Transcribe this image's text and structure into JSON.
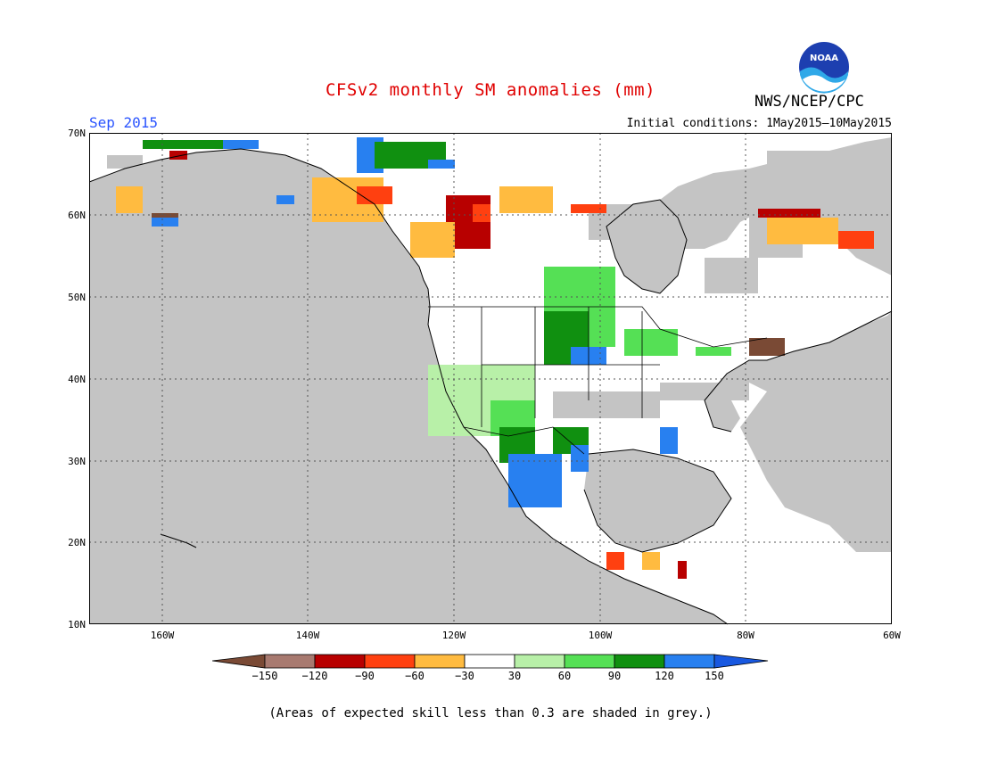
{
  "header": {
    "title": "CFSv2 monthly SM anomalies (mm)",
    "agency": "NWS/NCEP/CPC",
    "period": "Sep 2015",
    "initial_conditions": "Initial conditions: 1May2015–10May2015",
    "logo_text": "NOAA"
  },
  "map": {
    "lat_labels": [
      "70N",
      "60N",
      "50N",
      "40N",
      "30N",
      "20N",
      "10N"
    ],
    "lon_labels": [
      "160W",
      "140W",
      "120W",
      "100W",
      "80W",
      "60W"
    ],
    "ocean_color": "#c4c4c4",
    "gridlines": true
  },
  "colorbar": {
    "labels": [
      "−150",
      "−120",
      "−90",
      "−60",
      "−30",
      "30",
      "60",
      "90",
      "120",
      "150"
    ],
    "colors": [
      "#7a4a35",
      "#a87a70",
      "#b80000",
      "#ff4010",
      "#ffbb40",
      "#ffffff",
      "#b8f0a8",
      "#55e055",
      "#109010",
      "#2880f0",
      "#1858e0"
    ]
  },
  "note": "(Areas of expected skill less than 0.3 are shaded in grey.)"
}
